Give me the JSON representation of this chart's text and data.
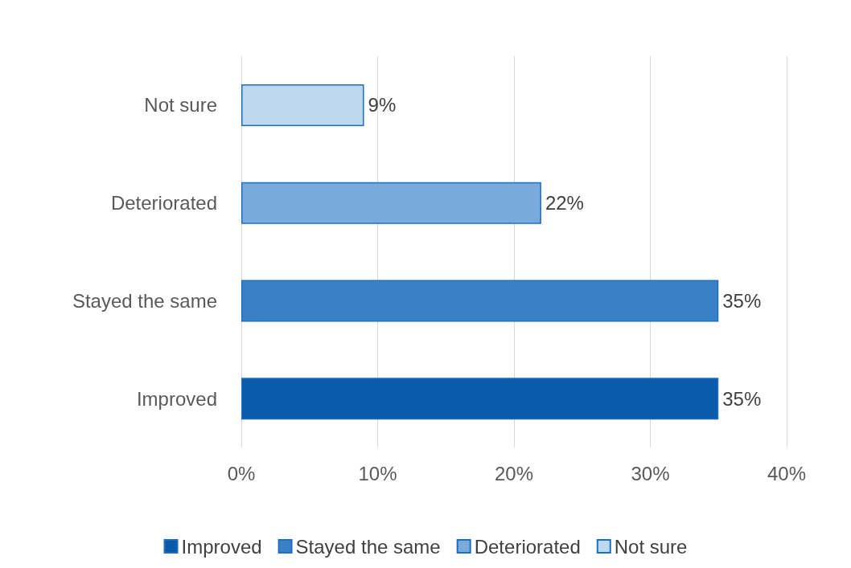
{
  "chart_data": {
    "type": "bar",
    "orientation": "horizontal",
    "stacked": true,
    "categories": [
      "Not sure",
      "Deteriorated",
      "Stayed the same",
      "Improved"
    ],
    "series": [
      {
        "name": "Improved",
        "color": "#0a5aaa",
        "values": [
          null,
          null,
          null,
          35
        ],
        "value_labels": [
          null,
          null,
          null,
          "35%"
        ]
      },
      {
        "name": "Stayed the same",
        "color": "#3a80c6",
        "values": [
          null,
          null,
          35,
          null
        ],
        "value_labels": [
          null,
          null,
          "35%",
          null
        ]
      },
      {
        "name": "Deteriorated",
        "color": "#78aadc",
        "values": [
          null,
          22,
          null,
          null
        ],
        "value_labels": [
          null,
          "22%",
          null,
          null
        ]
      },
      {
        "name": "Not sure",
        "color": "#bdd7ef",
        "values": [
          9,
          null,
          null,
          null
        ],
        "value_labels": [
          "9%",
          null,
          null,
          null
        ]
      }
    ],
    "xlim": [
      0,
      40
    ],
    "xticks": [
      {
        "value": 0,
        "label": "0%"
      },
      {
        "value": 10,
        "label": "10%"
      },
      {
        "value": 20,
        "label": "20%"
      },
      {
        "value": 30,
        "label": "30%"
      },
      {
        "value": 40,
        "label": "40%"
      }
    ],
    "grid": "x",
    "legend": "bottom"
  }
}
